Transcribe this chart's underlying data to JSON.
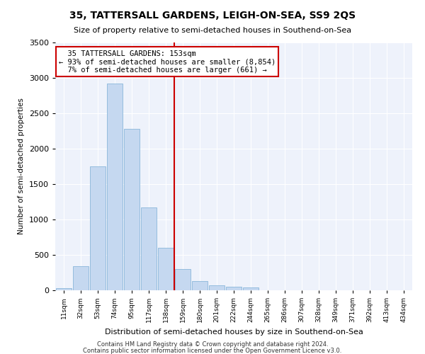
{
  "title": "35, TATTERSALL GARDENS, LEIGH-ON-SEA, SS9 2QS",
  "subtitle": "Size of property relative to semi-detached houses in Southend-on-Sea",
  "xlabel": "Distribution of semi-detached houses by size in Southend-on-Sea",
  "ylabel": "Number of semi-detached properties",
  "bar_labels": [
    "11sqm",
    "32sqm",
    "53sqm",
    "74sqm",
    "95sqm",
    "117sqm",
    "138sqm",
    "159sqm",
    "180sqm",
    "201sqm",
    "222sqm",
    "244sqm",
    "265sqm",
    "286sqm",
    "307sqm",
    "328sqm",
    "349sqm",
    "371sqm",
    "392sqm",
    "413sqm",
    "434sqm"
  ],
  "bar_values": [
    30,
    340,
    1750,
    2920,
    2280,
    1170,
    600,
    300,
    130,
    70,
    50,
    40,
    0,
    0,
    0,
    0,
    0,
    0,
    0,
    0,
    0
  ],
  "bar_color": "#c5d8f0",
  "bar_edge_color": "#7aadd4",
  "property_label": "35 TATTERSALL GARDENS: 153sqm",
  "pct_smaller": 93,
  "n_smaller": 8854,
  "pct_larger": 7,
  "n_larger": 661,
  "vline_color": "#cc0000",
  "annotation_box_color": "#ffffff",
  "annotation_box_edge": "#cc0000",
  "ylim": [
    0,
    3500
  ],
  "background_color": "#eef2fb",
  "footer1": "Contains HM Land Registry data © Crown copyright and database right 2024.",
  "footer2": "Contains public sector information licensed under the Open Government Licence v3.0."
}
